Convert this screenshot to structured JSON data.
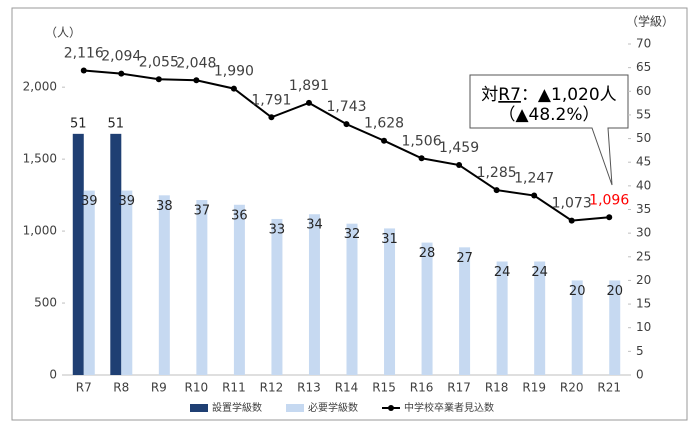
{
  "chart_data": {
    "type": "bar-line",
    "y_label": "（人）",
    "y2_label": "（学級）",
    "categories": [
      "R7",
      "R8",
      "R9",
      "R10",
      "R11",
      "R12",
      "R13",
      "R14",
      "R15",
      "R16",
      "R17",
      "R18",
      "R19",
      "R20",
      "R21"
    ],
    "series": [
      {
        "name": "設置学級数",
        "type": "bar",
        "axis": "y2",
        "color": "#1f3f73",
        "values": [
          51,
          51,
          null,
          null,
          null,
          null,
          null,
          null,
          null,
          null,
          null,
          null,
          null,
          null,
          null
        ]
      },
      {
        "name": "必要学級数",
        "type": "bar",
        "axis": "y2",
        "color": "#c6d9f1",
        "values": [
          39,
          39,
          38,
          37,
          36,
          33,
          34,
          32,
          31,
          28,
          27,
          24,
          24,
          20,
          20
        ]
      },
      {
        "name": "中学校卒業者見込数",
        "type": "line",
        "axis": "y",
        "color": "#000000",
        "highlight_color": "#ff0000",
        "values": [
          2116,
          2094,
          2055,
          2048,
          1990,
          1791,
          1891,
          1743,
          1628,
          1506,
          1459,
          1285,
          1247,
          1073,
          1096
        ],
        "value_labels": [
          "2,116",
          "2,094",
          "2,055",
          "2,048",
          "1,990",
          "1,791",
          "1,891",
          "1,743",
          "1,628",
          "1,506",
          "1,459",
          "1,285",
          "1,247",
          "1,073",
          "1,096"
        ]
      }
    ],
    "ylim": [
      0,
      2300
    ],
    "yticks": [
      0,
      500,
      {
        "value": 1000,
        "label": "1,000"
      },
      {
        "value": 1500,
        "label": "1,500"
      },
      {
        "value": 2000,
        "label": "2,000"
      }
    ],
    "y2lim": [
      0,
      70
    ],
    "y2ticks": [
      0,
      5,
      10,
      15,
      20,
      25,
      30,
      35,
      40,
      45,
      50,
      55,
      60,
      65,
      70
    ],
    "annotation": {
      "prefix": "対",
      "underlined": "R7",
      "rest": "：▲1,020人",
      "line2": "（▲48.2%）"
    }
  }
}
